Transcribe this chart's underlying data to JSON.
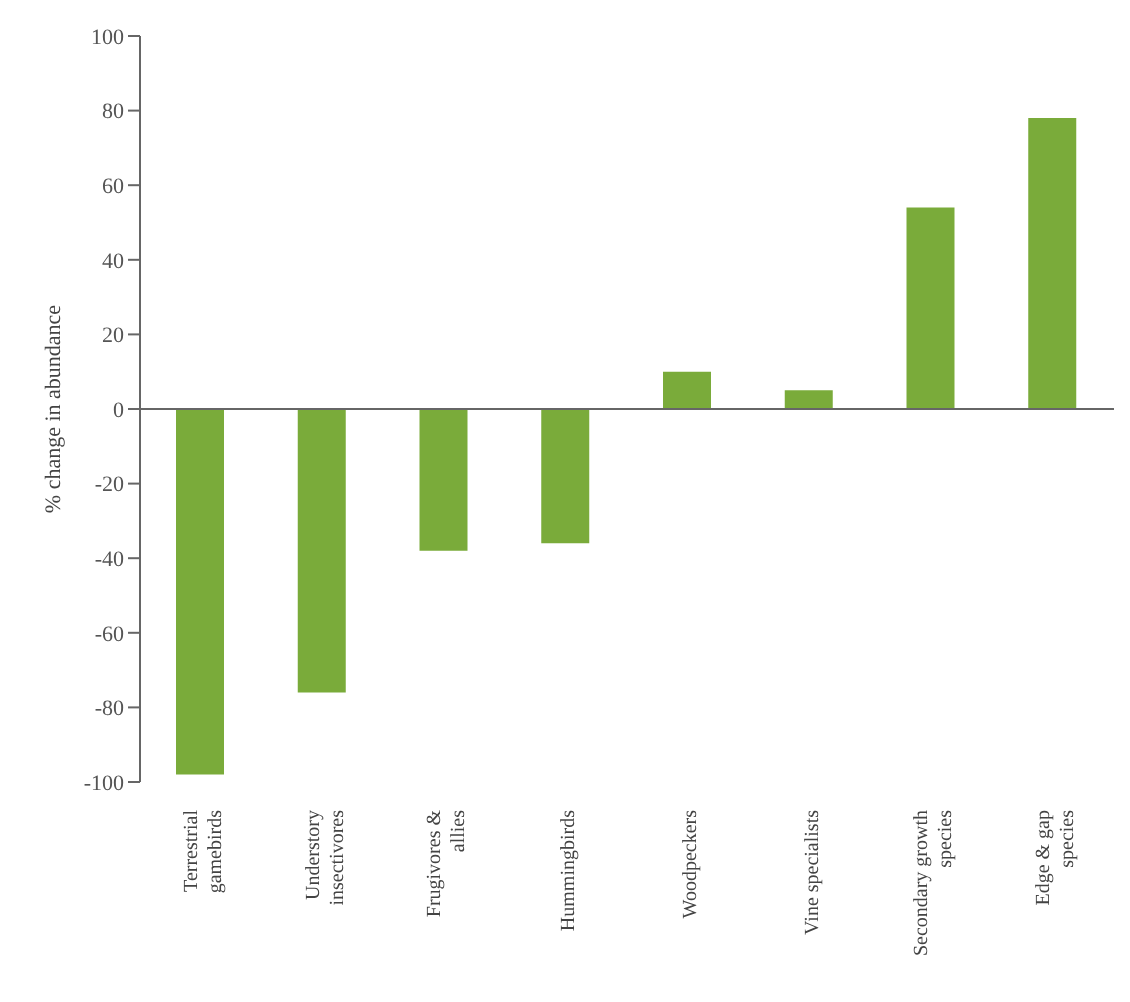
{
  "chart_data": {
    "type": "bar",
    "ylabel": "% change in abundance",
    "categories": [
      "Terrestrial gamebirds",
      "Understory insectivores",
      "Frugivores & allies",
      "Hummingbirds",
      "Woodpeckers",
      "Vine specialists",
      "Secondary growth species",
      "Edge & gap species"
    ],
    "values": [
      -98,
      -76,
      -38,
      -36,
      10,
      5,
      54,
      78
    ],
    "color": "#7aab3a",
    "ylim": [
      -100,
      100
    ],
    "yticks": [
      -100,
      -80,
      -60,
      -40,
      -20,
      0,
      20,
      40,
      60,
      80,
      100
    ],
    "legend": false
  }
}
